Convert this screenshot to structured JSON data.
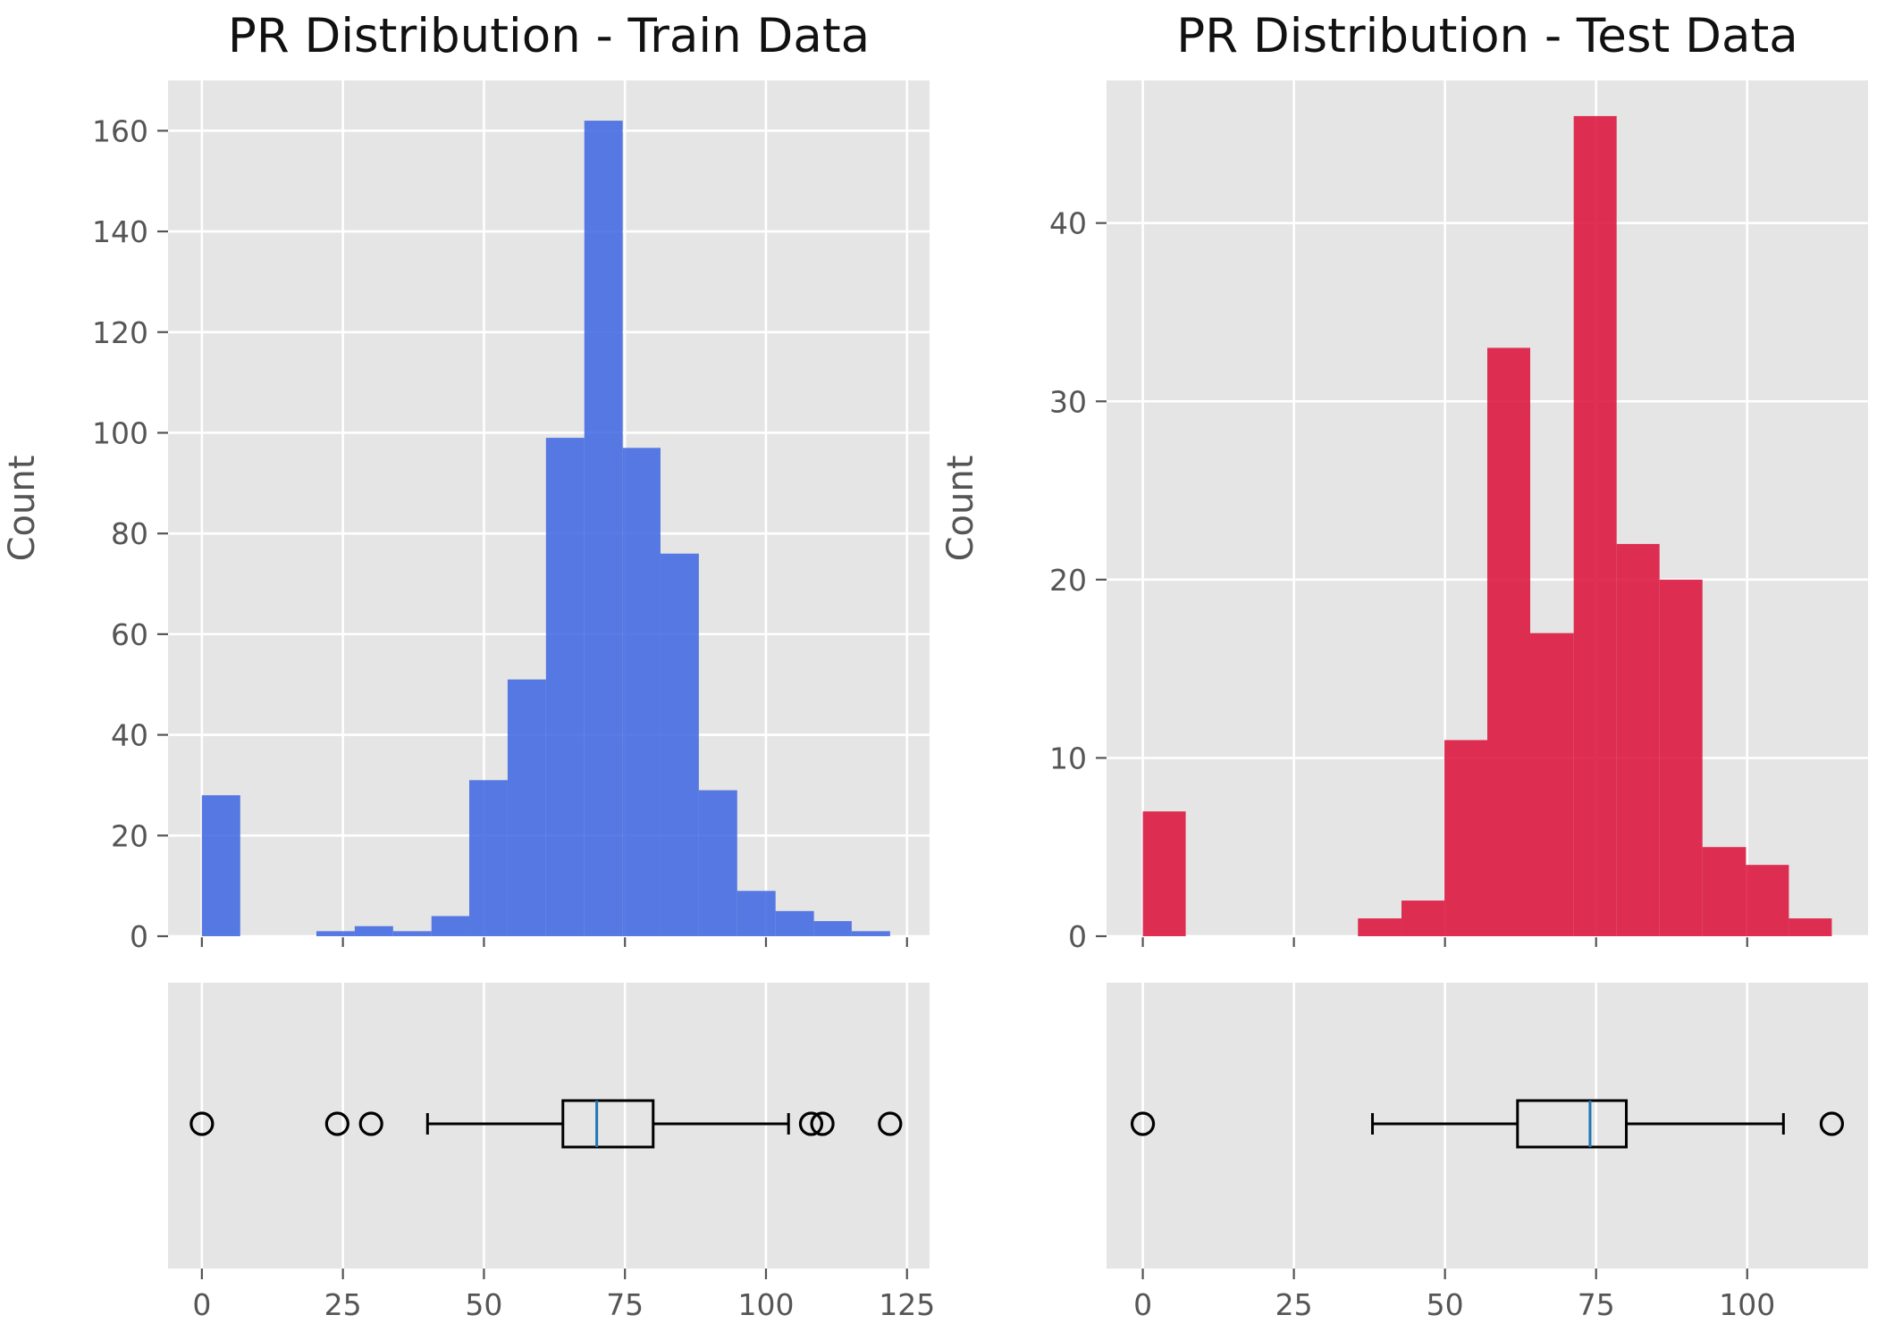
{
  "chart_data": [
    {
      "type": "histogram",
      "title": "PR Distribution - Train Data",
      "ylabel": "Count",
      "xlabel": "",
      "color": "#4169e1",
      "xlim": [
        -6,
        129
      ],
      "ylim": [
        0,
        170
      ],
      "xticks": [
        0,
        25,
        50,
        75,
        100,
        125
      ],
      "yticks": [
        0,
        20,
        40,
        60,
        80,
        100,
        120,
        140,
        160
      ],
      "grid": true,
      "bins": [
        {
          "x0": 0,
          "x1": 6.8,
          "count": 28
        },
        {
          "x0": 6.8,
          "x1": 13.6,
          "count": 0
        },
        {
          "x0": 13.6,
          "x1": 20.3,
          "count": 0
        },
        {
          "x0": 20.3,
          "x1": 27.1,
          "count": 1
        },
        {
          "x0": 27.1,
          "x1": 33.9,
          "count": 2
        },
        {
          "x0": 33.9,
          "x1": 40.7,
          "count": 1
        },
        {
          "x0": 40.7,
          "x1": 47.4,
          "count": 4
        },
        {
          "x0": 47.4,
          "x1": 54.2,
          "count": 31
        },
        {
          "x0": 54.2,
          "x1": 61.0,
          "count": 51
        },
        {
          "x0": 61.0,
          "x1": 67.8,
          "count": 99
        },
        {
          "x0": 67.8,
          "x1": 74.6,
          "count": 162
        },
        {
          "x0": 74.6,
          "x1": 81.3,
          "count": 97
        },
        {
          "x0": 81.3,
          "x1": 88.1,
          "count": 76
        },
        {
          "x0": 88.1,
          "x1": 94.9,
          "count": 29
        },
        {
          "x0": 94.9,
          "x1": 101.7,
          "count": 9
        },
        {
          "x0": 101.7,
          "x1": 108.5,
          "count": 5
        },
        {
          "x0": 108.5,
          "x1": 115.2,
          "count": 3
        },
        {
          "x0": 115.2,
          "x1": 122.0,
          "count": 1
        }
      ],
      "boxplot": {
        "whisker_low": 40,
        "q1": 64,
        "median": 70,
        "q3": 80,
        "whisker_high": 104,
        "outliers": [
          0,
          24,
          30,
          108,
          110,
          122
        ],
        "median_color": "#1f77b4"
      }
    },
    {
      "type": "histogram",
      "title": "PR Distribution - Test Data",
      "ylabel": "Count",
      "xlabel": "",
      "color": "#dc143c",
      "xlim": [
        -6,
        120
      ],
      "ylim": [
        0,
        48
      ],
      "xticks": [
        0,
        25,
        50,
        75,
        100
      ],
      "yticks": [
        0,
        10,
        20,
        30,
        40
      ],
      "grid": true,
      "bins": [
        {
          "x0": 0,
          "x1": 7.1,
          "count": 7
        },
        {
          "x0": 7.1,
          "x1": 14.3,
          "count": 0
        },
        {
          "x0": 14.3,
          "x1": 21.4,
          "count": 0
        },
        {
          "x0": 21.4,
          "x1": 28.5,
          "count": 0
        },
        {
          "x0": 28.5,
          "x1": 35.6,
          "count": 0
        },
        {
          "x0": 35.6,
          "x1": 42.8,
          "count": 1
        },
        {
          "x0": 42.8,
          "x1": 49.9,
          "count": 2
        },
        {
          "x0": 49.9,
          "x1": 57.0,
          "count": 11
        },
        {
          "x0": 57.0,
          "x1": 64.1,
          "count": 33
        },
        {
          "x0": 64.1,
          "x1": 71.3,
          "count": 17
        },
        {
          "x0": 71.3,
          "x1": 78.4,
          "count": 46
        },
        {
          "x0": 78.4,
          "x1": 85.5,
          "count": 22
        },
        {
          "x0": 85.5,
          "x1": 92.6,
          "count": 20
        },
        {
          "x0": 92.6,
          "x1": 99.8,
          "count": 5
        },
        {
          "x0": 99.8,
          "x1": 106.9,
          "count": 4
        },
        {
          "x0": 106.9,
          "x1": 114.0,
          "count": 1
        }
      ],
      "boxplot": {
        "whisker_low": 38,
        "q1": 62,
        "median": 74,
        "q3": 80,
        "whisker_high": 106,
        "outliers": [
          0,
          114
        ],
        "median_color": "#1f77b4"
      }
    }
  ]
}
